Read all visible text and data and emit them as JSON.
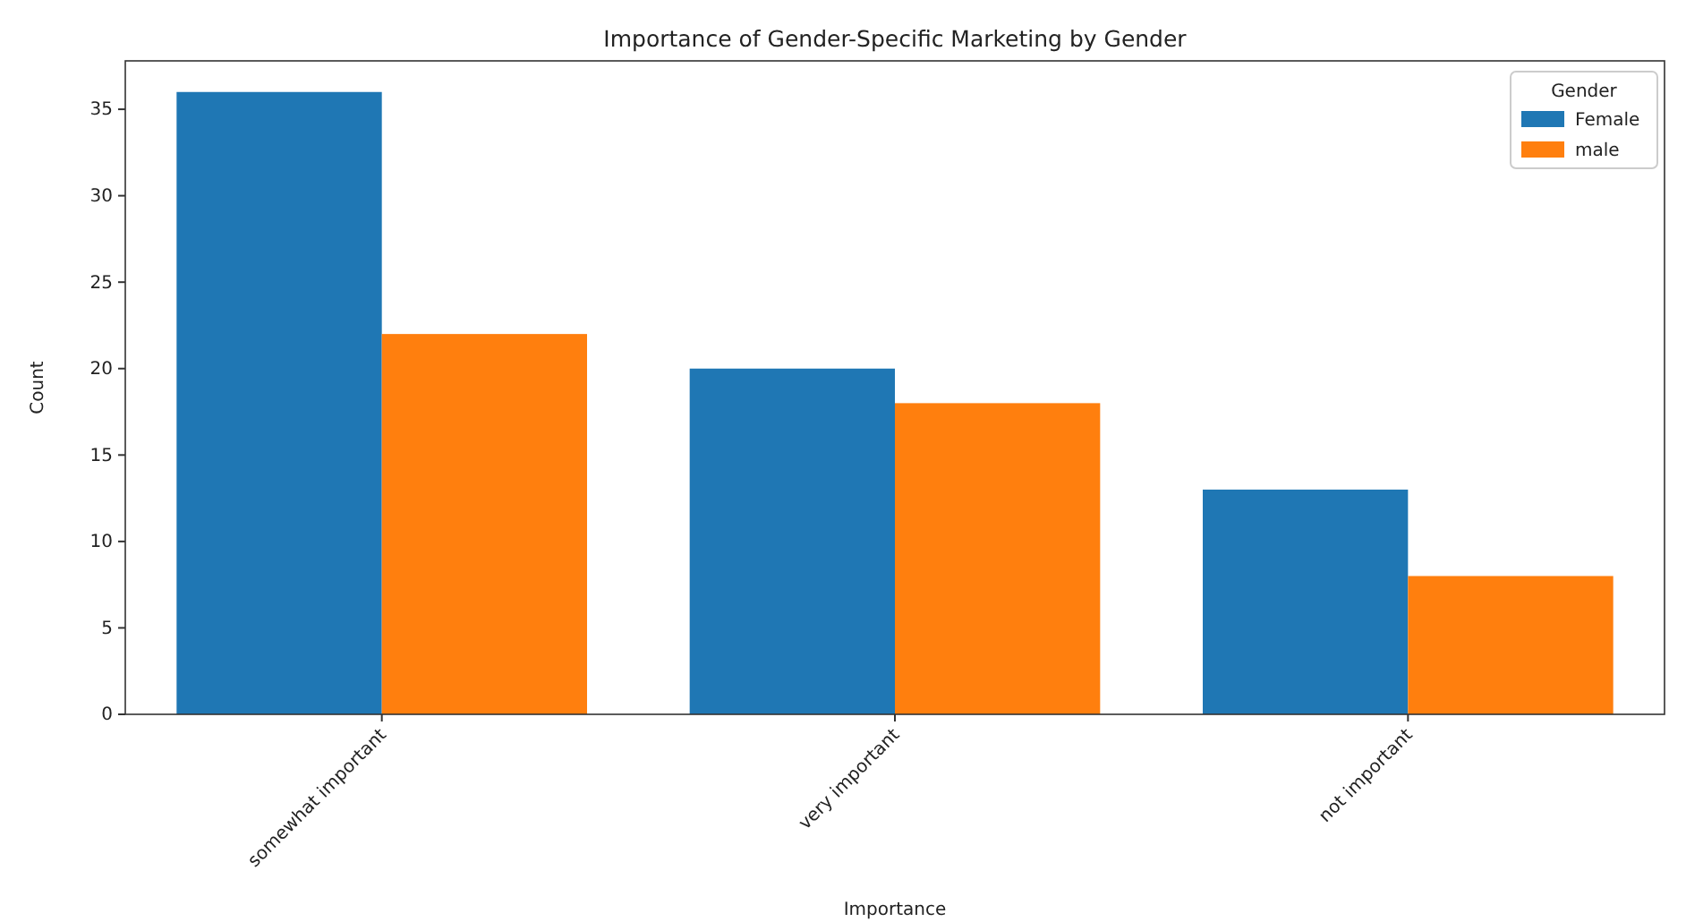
{
  "chart_data": {
    "type": "bar",
    "title": "Importance of Gender-Specific Marketing by Gender",
    "xlabel": "Importance",
    "ylabel": "Count",
    "legend_title": "Gender",
    "legend": "top right",
    "categories": [
      "somewhat important",
      "very important",
      "not important"
    ],
    "series": [
      {
        "name": "Female",
        "color": "#1f77b4",
        "values": [
          36,
          20,
          13
        ]
      },
      {
        "name": "male",
        "color": "#ff7f0e",
        "values": [
          22,
          18,
          8
        ]
      }
    ],
    "ylim": [
      0,
      37.8
    ],
    "yticks": [
      0,
      5,
      10,
      15,
      20,
      25,
      30,
      35
    ]
  }
}
